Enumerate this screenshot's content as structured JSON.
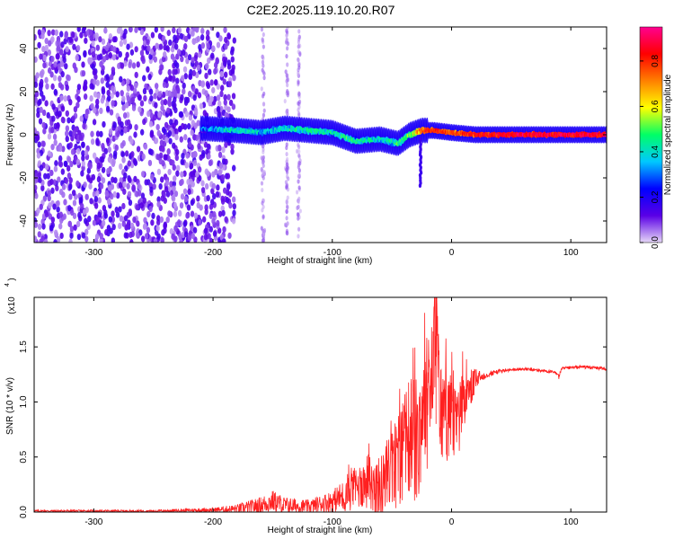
{
  "title": "C2E2.2025.119.10.20.R07",
  "chart_data": [
    {
      "type": "heatmap",
      "xlabel": "Height of straight line (km)",
      "ylabel": "Frequency (Hz)",
      "xlim": [
        -350,
        130
      ],
      "ylim": [
        -50,
        50
      ],
      "xticks": [
        -300,
        -200,
        -100,
        0,
        100
      ],
      "yticks": [
        -40,
        -20,
        0,
        20,
        40
      ],
      "xtick_labels": [
        "-300",
        "-200",
        "-100",
        "0",
        "100"
      ],
      "ytick_labels": [
        "-40",
        "-20",
        "0",
        "20",
        "40"
      ],
      "grid": false,
      "colorbar": {
        "label": "Normalized spectral amplitude",
        "range": [
          0,
          0.95
        ],
        "ticks": [
          0,
          0.2,
          0.4,
          0.6,
          0.8
        ],
        "tick_labels": [
          "0.0",
          "0.2",
          "0.4",
          "0.6",
          "0.8"
        ],
        "colormap": [
          "#e6d7f7",
          "#5a00e6",
          "#0000ff",
          "#00c8ff",
          "#00ff66",
          "#ffff00",
          "#ff8000",
          "#ff0000",
          "#ff0090"
        ]
      },
      "noise_region_x": [
        -350,
        -200
      ],
      "signal_ridge": {
        "x": [
          -210,
          -180,
          -160,
          -140,
          -120,
          -100,
          -80,
          -60,
          -45,
          -35,
          -25,
          -15,
          0,
          20,
          50,
          100,
          130
        ],
        "y": [
          3,
          2,
          1,
          3,
          2,
          1,
          -3,
          -2,
          -4,
          0,
          2,
          2,
          1,
          0,
          0,
          0,
          0
        ],
        "peak_amplitude": [
          0.35,
          0.45,
          0.4,
          0.45,
          0.5,
          0.45,
          0.5,
          0.45,
          0.5,
          0.55,
          0.8,
          0.85,
          0.8,
          0.85,
          0.9,
          0.9,
          0.9
        ]
      }
    },
    {
      "type": "line",
      "xlabel": "Height of straight line (km)",
      "ylabel": "SNR (10 * v/v)",
      "y_multiplier": "(x10",
      "y_multiplier_exp": "4",
      "xlim": [
        -350,
        130
      ],
      "ylim": [
        0,
        1.95
      ],
      "xticks": [
        -300,
        -200,
        -100,
        0,
        100
      ],
      "yticks": [
        0,
        0.5,
        1.0,
        1.5
      ],
      "xtick_labels": [
        "-300",
        "-200",
        "-100",
        "0",
        "100"
      ],
      "ytick_labels": [
        "0.0",
        "0.5",
        "1.0",
        "1.5"
      ],
      "grid": false,
      "series": [
        {
          "color": "#ff2020",
          "x": [
            -350,
            -250,
            -200,
            -180,
            -160,
            -150,
            -140,
            -120,
            -100,
            -90,
            -80,
            -70,
            -60,
            -50,
            -40,
            -35,
            -30,
            -25,
            -20,
            -15,
            -13,
            -10,
            -5,
            0,
            5,
            10,
            15,
            20,
            25,
            30,
            40,
            50,
            60,
            70,
            80,
            89,
            90,
            92,
            100,
            110,
            120,
            130
          ],
          "y": [
            0.01,
            0.01,
            0.02,
            0.03,
            0.06,
            0.1,
            0.06,
            0.05,
            0.1,
            0.15,
            0.22,
            0.28,
            0.2,
            0.4,
            0.55,
            0.72,
            0.6,
            0.9,
            1.0,
            1.3,
            1.95,
            0.9,
            0.9,
            0.85,
            0.8,
            1.0,
            1.1,
            1.2,
            1.23,
            1.25,
            1.28,
            1.29,
            1.3,
            1.29,
            1.28,
            1.26,
            1.22,
            1.3,
            1.31,
            1.32,
            1.31,
            1.3
          ],
          "noise_amplitude": [
            0.01,
            0.01,
            0.02,
            0.04,
            0.08,
            0.1,
            0.08,
            0.06,
            0.1,
            0.15,
            0.2,
            0.25,
            0.3,
            0.4,
            0.5,
            0.55,
            0.6,
            0.6,
            0.6,
            0.55,
            0.5,
            0.5,
            0.45,
            0.4,
            0.35,
            0.3,
            0.2,
            0.1,
            0.05,
            0.03,
            0.02,
            0.015,
            0.015,
            0.015,
            0.015,
            0.015,
            0.015,
            0.015,
            0.015,
            0.015,
            0.015,
            0.015
          ]
        }
      ]
    }
  ]
}
